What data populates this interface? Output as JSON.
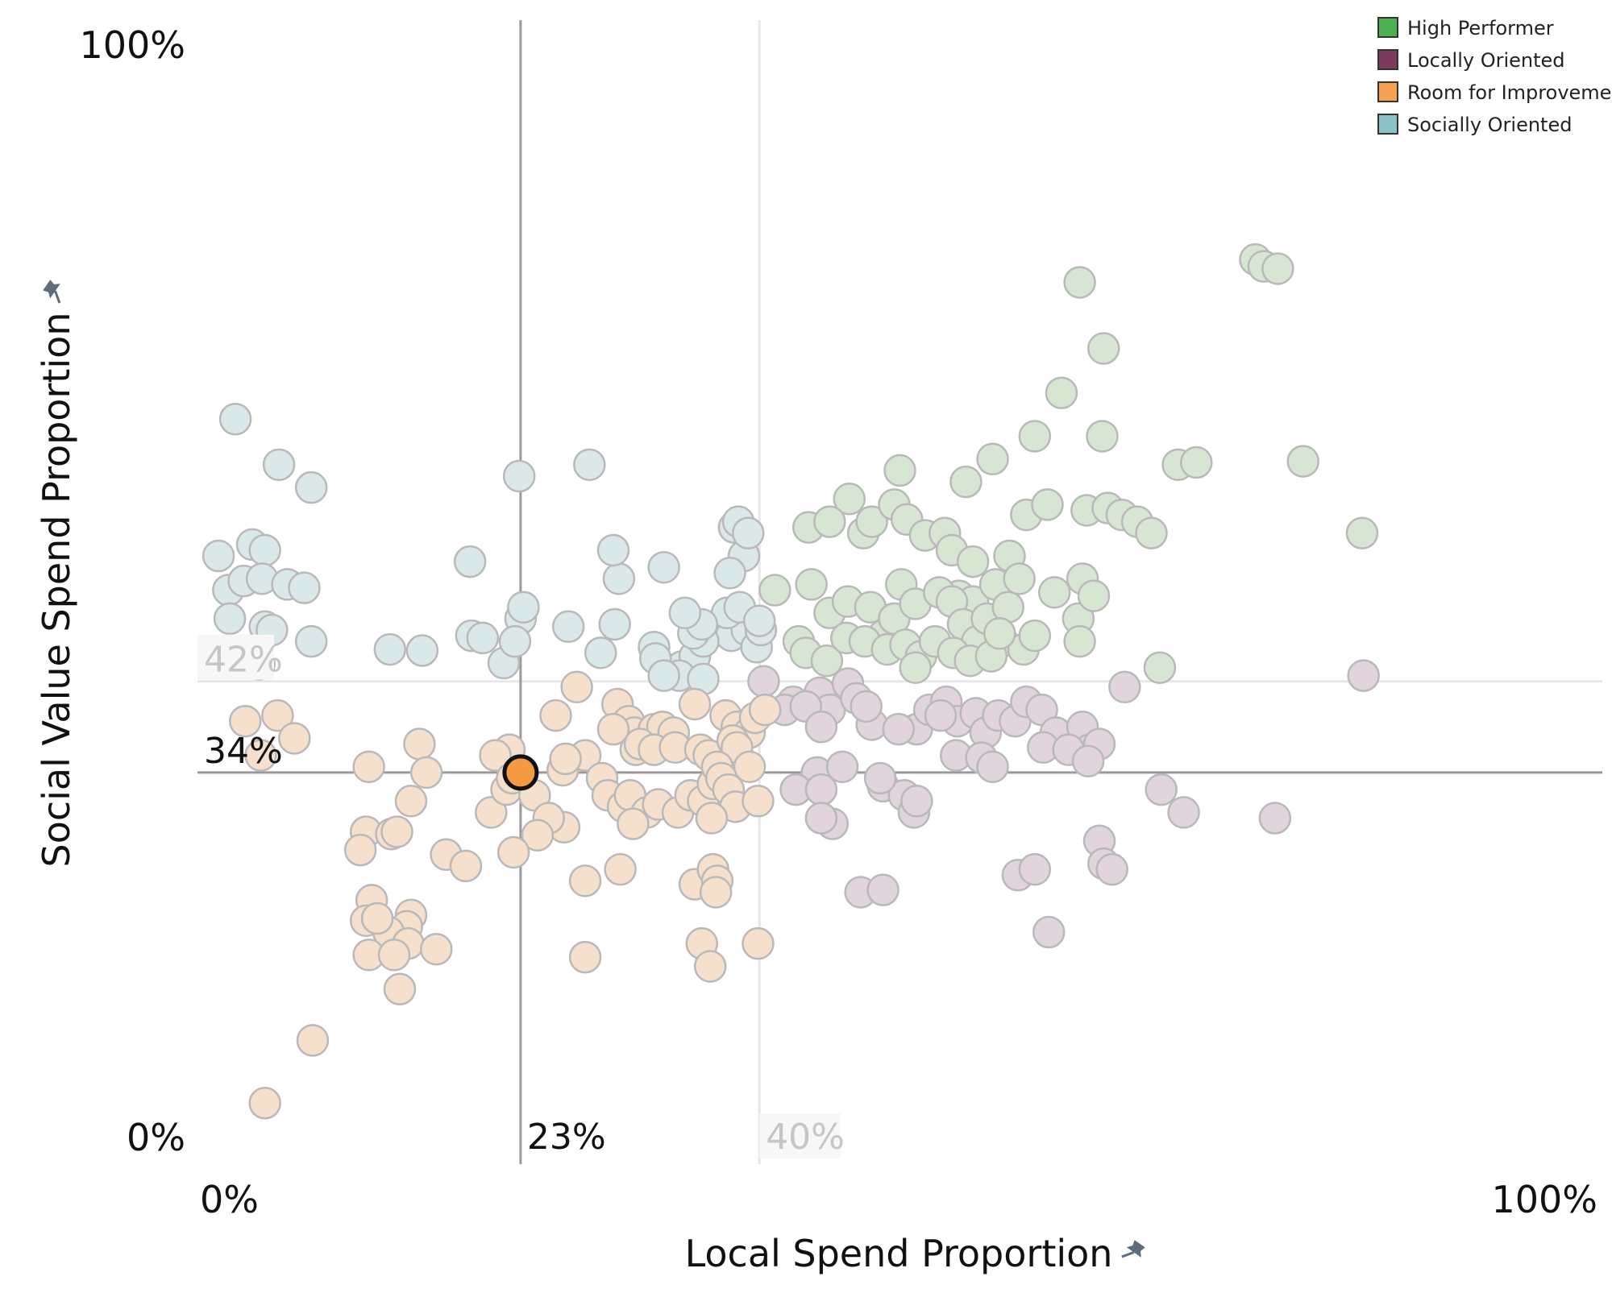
{
  "chart_data": {
    "type": "scatter",
    "xlabel": "Local Spend Proportion",
    "ylabel": "Social Value Spend Proportion",
    "x_ticks": [
      "0%",
      "100%"
    ],
    "y_ticks": [
      "0%",
      "100%"
    ],
    "xlim": [
      0,
      100
    ],
    "ylim": [
      0,
      100
    ],
    "axis_pin_icon": "pin-icon",
    "legend_position": "top-right",
    "legend": [
      {
        "name": "High Performer",
        "color": "#4caf50"
      },
      {
        "name": "Locally Oriented",
        "color": "#7b3b5e"
      },
      {
        "name": "Room for Improvement",
        "color": "#f4a24f"
      },
      {
        "name": "Socially Oriented",
        "color": "#8bc3c8"
      }
    ],
    "faded_colors": {
      "High Performer": "#d6e6d3",
      "Locally Oriented": "#e1d4dd",
      "Room for Improvement": "#f4e0cd",
      "Socially Oriented": "#dbe8e9"
    },
    "highlight_color": "#f49a42",
    "reference_lines": {
      "selected": {
        "x": 23,
        "y": 34,
        "x_label": "23%",
        "y_label": "34%"
      },
      "average": {
        "x": 40,
        "y": 42,
        "x_label": "40%",
        "y_label": "42%"
      }
    },
    "highlighted_point": {
      "x": 23,
      "y": 34,
      "group": "Room for Improvement"
    },
    "series": [
      {
        "name": "Socially Oriented",
        "points": [
          [
            2.7,
            65
          ],
          [
            5.8,
            61
          ],
          [
            8.1,
            59
          ],
          [
            1.5,
            53
          ],
          [
            3.9,
            54
          ],
          [
            4.8,
            53.5
          ],
          [
            2.2,
            50
          ],
          [
            3.3,
            50.8
          ],
          [
            4.6,
            51
          ],
          [
            6.4,
            50.5
          ],
          [
            7.6,
            50.2
          ],
          [
            2.3,
            47.5
          ],
          [
            4.8,
            46.8
          ],
          [
            5.3,
            46.5
          ],
          [
            8.1,
            45.5
          ],
          [
            13.7,
            44.8
          ],
          [
            16.0,
            44.7
          ],
          [
            19.5,
            46
          ],
          [
            20.3,
            45.8
          ],
          [
            21.8,
            43.6
          ],
          [
            4.4,
            43.5
          ],
          [
            19.4,
            52.5
          ],
          [
            22.9,
            60
          ],
          [
            27.9,
            61
          ],
          [
            30.0,
            51
          ],
          [
            29.6,
            53.5
          ],
          [
            33.2,
            52
          ],
          [
            26.4,
            46.8
          ],
          [
            29.7,
            47
          ],
          [
            28.7,
            44.5
          ],
          [
            23.0,
            47.5
          ],
          [
            23.2,
            48.5
          ],
          [
            22.6,
            45.5
          ],
          [
            32.5,
            45
          ],
          [
            33.8,
            43
          ],
          [
            34.5,
            43.3
          ],
          [
            35.4,
            44.2
          ],
          [
            36.3,
            46.5
          ],
          [
            37.2,
            47
          ],
          [
            38.0,
            46
          ],
          [
            39.1,
            46.5
          ],
          [
            39.8,
            45
          ],
          [
            40.1,
            46.5
          ],
          [
            37.7,
            48
          ],
          [
            36.0,
            45.5
          ],
          [
            35.3,
            46.2
          ],
          [
            32.6,
            44
          ],
          [
            34.3,
            42.5
          ],
          [
            36.0,
            42.2
          ],
          [
            33.2,
            42.5
          ],
          [
            38.6,
            48.5
          ],
          [
            40.0,
            47.3
          ],
          [
            38.2,
            55.5
          ],
          [
            38.5,
            56
          ],
          [
            38.9,
            53
          ],
          [
            39.2,
            55
          ],
          [
            37.9,
            51.5
          ],
          [
            35.9,
            47
          ],
          [
            34.7,
            48
          ]
        ]
      },
      {
        "name": "High Performer",
        "points": [
          [
            75.3,
            79
          ],
          [
            75.9,
            78.4
          ],
          [
            76.9,
            78.2
          ],
          [
            62.8,
            77
          ],
          [
            64.5,
            71.2
          ],
          [
            61.5,
            67.3
          ],
          [
            59.6,
            63.5
          ],
          [
            64.4,
            63.5
          ],
          [
            78.7,
            61.3
          ],
          [
            69.8,
            61
          ],
          [
            71.1,
            61.2
          ],
          [
            43.5,
            55.5
          ],
          [
            46.4,
            58
          ],
          [
            50.0,
            60.5
          ],
          [
            54.7,
            59.5
          ],
          [
            56.6,
            61.5
          ],
          [
            59.0,
            56.6
          ],
          [
            60.5,
            57.5
          ],
          [
            63.3,
            57
          ],
          [
            64.8,
            57.2
          ],
          [
            65.8,
            56.6
          ],
          [
            66.9,
            56
          ],
          [
            67.9,
            55
          ],
          [
            82.9,
            55
          ],
          [
            45.0,
            56
          ],
          [
            47.4,
            55
          ],
          [
            48.0,
            56
          ],
          [
            49.6,
            57.5
          ],
          [
            50.5,
            56.2
          ],
          [
            51.8,
            54.8
          ],
          [
            53.2,
            55
          ],
          [
            53.7,
            53.5
          ],
          [
            55.2,
            52.5
          ],
          [
            57.8,
            53
          ],
          [
            54.2,
            49.5
          ],
          [
            55.2,
            49
          ],
          [
            56.8,
            50.5
          ],
          [
            58.5,
            51
          ],
          [
            61.0,
            49.8
          ],
          [
            62.7,
            47.5
          ],
          [
            63.0,
            51
          ],
          [
            63.8,
            49.5
          ],
          [
            68.5,
            43.2
          ],
          [
            43.7,
            50.5
          ],
          [
            45.0,
            48
          ],
          [
            46.3,
            49
          ],
          [
            47.9,
            48.5
          ],
          [
            48.8,
            46
          ],
          [
            49.6,
            47.5
          ],
          [
            50.1,
            50.5
          ],
          [
            51.1,
            48.8
          ],
          [
            52.8,
            49.8
          ],
          [
            53.7,
            49
          ],
          [
            54.5,
            47
          ],
          [
            55.5,
            45.5
          ],
          [
            56.2,
            47.5
          ],
          [
            57.3,
            45.5
          ],
          [
            57.7,
            48.5
          ],
          [
            58.8,
            44.8
          ],
          [
            59.6,
            46
          ],
          [
            42.8,
            45.5
          ],
          [
            43.3,
            44.5
          ],
          [
            44.8,
            43.8
          ],
          [
            46.2,
            45.8
          ],
          [
            47.5,
            45.5
          ],
          [
            49.1,
            44.8
          ],
          [
            50.4,
            45.2
          ],
          [
            51.5,
            44.2
          ],
          [
            52.5,
            45.5
          ],
          [
            53.8,
            44.5
          ],
          [
            55.0,
            43.8
          ],
          [
            56.5,
            44.2
          ],
          [
            57.1,
            46.2
          ],
          [
            51.1,
            43.2
          ],
          [
            62.8,
            45.5
          ],
          [
            41.1,
            50
          ]
        ]
      },
      {
        "name": "Locally Oriented",
        "points": [
          [
            83.0,
            42.5
          ],
          [
            66.0,
            41.5
          ],
          [
            40.3,
            42
          ],
          [
            42.4,
            40.2
          ],
          [
            44.3,
            41
          ],
          [
            45.0,
            39.5
          ],
          [
            46.3,
            41.8
          ],
          [
            46.9,
            40.5
          ],
          [
            48.0,
            38.2
          ],
          [
            51.2,
            37.8
          ],
          [
            52.1,
            39.5
          ],
          [
            53.3,
            40.2
          ],
          [
            54.1,
            38.5
          ],
          [
            55.4,
            39.2
          ],
          [
            56.1,
            37.5
          ],
          [
            57.0,
            39
          ],
          [
            58.2,
            38.5
          ],
          [
            59.0,
            40.2
          ],
          [
            60.1,
            39.5
          ],
          [
            61.1,
            37.5
          ],
          [
            63.0,
            38
          ],
          [
            63.5,
            36
          ],
          [
            64.2,
            36.5
          ],
          [
            41.8,
            39.5
          ],
          [
            43.3,
            39.8
          ],
          [
            44.4,
            38
          ],
          [
            47.6,
            39.8
          ],
          [
            49.9,
            37.8
          ],
          [
            52.9,
            39
          ],
          [
            54.0,
            35.5
          ],
          [
            55.8,
            35.3
          ],
          [
            56.6,
            34.5
          ],
          [
            60.2,
            36.2
          ],
          [
            62.0,
            36
          ],
          [
            63.4,
            35
          ],
          [
            44.1,
            34
          ],
          [
            45.9,
            34.5
          ],
          [
            48.8,
            32.8
          ],
          [
            50.3,
            32
          ],
          [
            48.6,
            33.5
          ],
          [
            42.6,
            32.5
          ],
          [
            45.2,
            29.5
          ],
          [
            44.4,
            32.5
          ],
          [
            44.4,
            30
          ],
          [
            51.0,
            30.5
          ],
          [
            51.2,
            31.5
          ],
          [
            64.2,
            28
          ],
          [
            68.6,
            32.5
          ],
          [
            70.2,
            30.5
          ],
          [
            76.7,
            30
          ],
          [
            58.4,
            25
          ],
          [
            59.6,
            25.5
          ],
          [
            64.5,
            26
          ],
          [
            65.1,
            25.5
          ],
          [
            47.2,
            23.5
          ],
          [
            48.8,
            23.7
          ],
          [
            60.6,
            20
          ]
        ]
      },
      {
        "name": "Room for Improvement",
        "points": [
          [
            3.4,
            38.5
          ],
          [
            5.7,
            39
          ],
          [
            6.9,
            37
          ],
          [
            4.5,
            35.5
          ],
          [
            15.8,
            36.5
          ],
          [
            16.3,
            34
          ],
          [
            22.2,
            36
          ],
          [
            21.2,
            35.5
          ],
          [
            25.5,
            39
          ],
          [
            27.0,
            41.5
          ],
          [
            29.9,
            40
          ],
          [
            30.7,
            38.5
          ],
          [
            31.1,
            37.5
          ],
          [
            32.5,
            37.8
          ],
          [
            33.1,
            38
          ],
          [
            33.9,
            37.5
          ],
          [
            35.4,
            40
          ],
          [
            37.6,
            39
          ],
          [
            38.4,
            38
          ],
          [
            39.3,
            37.5
          ],
          [
            39.7,
            38.8
          ],
          [
            40.4,
            39.5
          ],
          [
            27.6,
            35.5
          ],
          [
            29.6,
            37.8
          ],
          [
            31.2,
            36
          ],
          [
            31.5,
            36.5
          ],
          [
            32.5,
            36
          ],
          [
            34.0,
            36.2
          ],
          [
            35.8,
            36
          ],
          [
            36.4,
            35.5
          ],
          [
            38.1,
            36.8
          ],
          [
            38.4,
            36.2
          ],
          [
            39.3,
            34.5
          ],
          [
            26.0,
            34.2
          ],
          [
            26.2,
            35.2
          ],
          [
            28.8,
            33.5
          ],
          [
            29.2,
            32
          ],
          [
            30.3,
            31
          ],
          [
            30.8,
            32
          ],
          [
            32.0,
            30.5
          ],
          [
            32.8,
            31.2
          ],
          [
            34.2,
            30.5
          ],
          [
            35.1,
            32
          ],
          [
            36.0,
            31.5
          ],
          [
            36.7,
            33
          ],
          [
            37.0,
            34.5
          ],
          [
            37.3,
            33.5
          ],
          [
            37.8,
            32.5
          ],
          [
            38.3,
            31
          ],
          [
            36.6,
            30
          ],
          [
            39.9,
            31.5
          ],
          [
            31.0,
            29.5
          ],
          [
            26.1,
            29.2
          ],
          [
            20.9,
            30.5
          ],
          [
            22.0,
            32.5
          ],
          [
            22.4,
            33.5
          ],
          [
            23.0,
            34
          ],
          [
            24.0,
            32
          ],
          [
            25.0,
            30
          ],
          [
            24.2,
            28.5
          ],
          [
            22.5,
            27
          ],
          [
            12.2,
            34.5
          ],
          [
            15.2,
            31.5
          ],
          [
            12.0,
            28.8
          ],
          [
            13.8,
            28.6
          ],
          [
            14.2,
            28.8
          ],
          [
            17.7,
            26.8
          ],
          [
            11.6,
            27.2
          ],
          [
            19.1,
            25.8
          ],
          [
            27.6,
            24.5
          ],
          [
            30.1,
            25.5
          ],
          [
            35.4,
            24.2
          ],
          [
            36.7,
            25.5
          ],
          [
            37.0,
            24.5
          ],
          [
            36.9,
            23.5
          ],
          [
            12.4,
            22.8
          ],
          [
            12.0,
            21
          ],
          [
            15.2,
            21.5
          ],
          [
            14.9,
            20.5
          ],
          [
            13.6,
            20
          ],
          [
            12.8,
            21.2
          ],
          [
            15.0,
            19
          ],
          [
            12.2,
            18
          ],
          [
            14.0,
            18
          ],
          [
            17.0,
            18.5
          ],
          [
            27.6,
            17.8
          ],
          [
            35.9,
            19
          ],
          [
            36.5,
            17
          ],
          [
            39.9,
            19
          ],
          [
            14.4,
            15
          ],
          [
            8.2,
            10.5
          ],
          [
            4.8,
            5
          ]
        ]
      }
    ]
  }
}
